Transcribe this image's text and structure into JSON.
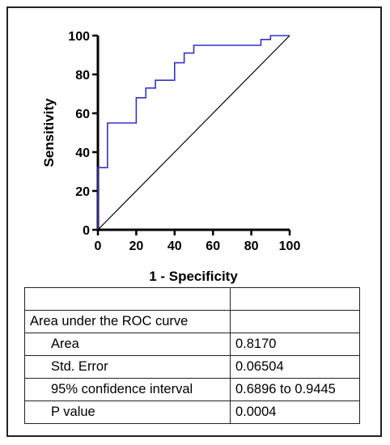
{
  "chart_data": {
    "type": "line",
    "title": "",
    "xlabel": "1 - Specificity",
    "ylabel": "Sensitivity",
    "xlim": [
      0,
      100
    ],
    "ylim": [
      0,
      100
    ],
    "xticks": [
      0,
      20,
      40,
      60,
      80,
      100
    ],
    "yticks": [
      0,
      20,
      40,
      60,
      80,
      100
    ],
    "grid": false,
    "series": [
      {
        "color": "#3333cc",
        "x": [
          0,
          0,
          5,
          5,
          20,
          20,
          25,
          25,
          30,
          30,
          40,
          40,
          45,
          45,
          50,
          50,
          85,
          85,
          90,
          90,
          100
        ],
        "y": [
          0,
          32,
          32,
          55,
          55,
          68,
          68,
          73,
          73,
          77,
          77,
          86,
          86,
          91,
          91,
          95,
          95,
          98,
          98,
          100,
          100
        ]
      },
      {
        "color": "#000000",
        "x": [
          0,
          100
        ],
        "y": [
          0,
          100
        ]
      }
    ]
  },
  "table": {
    "header": [
      "",
      ""
    ],
    "section_title": "Area under the ROC curve",
    "rows": [
      {
        "label": "Area",
        "value": "0.8170"
      },
      {
        "label": "Std. Error",
        "value": "0.06504"
      },
      {
        "label": "95% confidence interval",
        "value": "0.6896 to 0.9445"
      },
      {
        "label": "P value",
        "value": "0.0004"
      }
    ]
  }
}
